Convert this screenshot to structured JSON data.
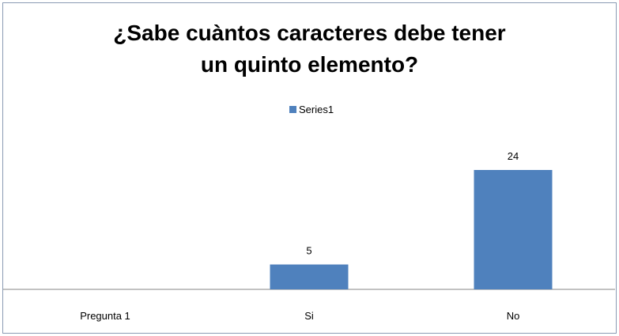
{
  "chart_data": {
    "type": "bar",
    "title_line1": "¿Sabe cuàntos caracteres debe tener",
    "title_line2": "un quinto elemento?",
    "categories": [
      "Pregunta 1",
      "Si",
      "No"
    ],
    "series": [
      {
        "name": "Series1",
        "values": [
          null,
          5,
          24
        ],
        "color": "#4f81bd"
      }
    ],
    "data_labels": [
      "",
      "5",
      "24"
    ],
    "legend_position": "top",
    "grid": false,
    "xlabel": "",
    "ylabel": "",
    "ylim": [
      0,
      24
    ]
  }
}
